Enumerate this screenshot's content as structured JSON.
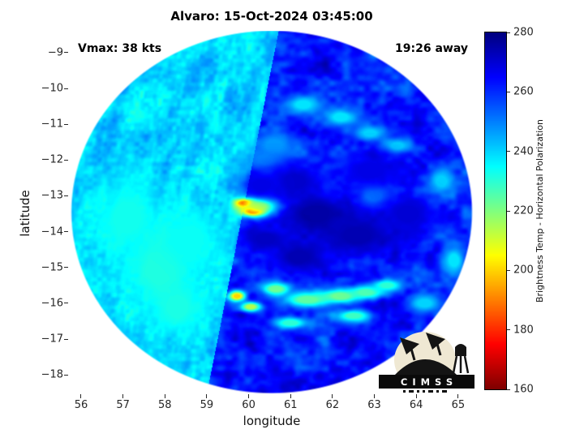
{
  "title": "Alvaro: 15-Oct-2024 03:45:00",
  "annotations": {
    "vmax": "Vmax: 38 kts",
    "time_away": "19:26 away"
  },
  "axes": {
    "xlabel": "longitude",
    "ylabel": "latitude",
    "xticks": [
      56,
      57,
      58,
      59,
      60,
      61,
      62,
      63,
      64,
      65
    ],
    "yticks": [
      -9,
      -10,
      -11,
      -12,
      -13,
      -14,
      -15,
      -16,
      -17,
      -18
    ]
  },
  "colorbar": {
    "label": "Brightness Temp - Horizontal Polarization",
    "min": 160,
    "max": 280,
    "ticks": [
      160,
      180,
      200,
      220,
      240,
      260,
      280
    ]
  },
  "logo": {
    "text": "CIMSS"
  },
  "chart_data": {
    "type": "heatmap",
    "title": "Alvaro: 15-Oct-2024 03:45:00",
    "xlabel": "longitude",
    "ylabel": "latitude",
    "xlim": [
      55.71,
      65.39
    ],
    "ylim": [
      -18.54,
      -8.39
    ],
    "value_label": "Brightness Temp - Horizontal Polarization",
    "value_range": [
      160,
      280
    ],
    "colormap": "jet_reversed",
    "grid": false,
    "swath": {
      "center_lon": 60.55,
      "center_lat": -13.45,
      "radius_lon": 4.8,
      "radius_lat": 5.08,
      "seam_lon_ref": 59.87,
      "seam_ref_lat": -13.4,
      "seam_slope": 0.169,
      "left_base_temp": 240,
      "left_temp_variation": 20,
      "right_base_temp": 262,
      "right_temp_variation": 24
    },
    "features": [
      {
        "lon": 59.93,
        "lat": -13.2,
        "t": 166,
        "sx": 0.16,
        "sy": 0.08
      },
      {
        "lon": 60.12,
        "lat": -13.42,
        "t": 176,
        "sx": 0.2,
        "sy": 0.1
      },
      {
        "lon": 60.25,
        "lat": -13.28,
        "t": 206,
        "sx": 0.3,
        "sy": 0.15
      },
      {
        "lon": 59.72,
        "lat": -15.8,
        "t": 200,
        "sx": 0.14,
        "sy": 0.1
      },
      {
        "lon": 60.05,
        "lat": -16.1,
        "t": 214,
        "sx": 0.18,
        "sy": 0.1
      },
      {
        "lon": 60.65,
        "lat": -15.6,
        "t": 222,
        "sx": 0.25,
        "sy": 0.13
      },
      {
        "lon": 61.4,
        "lat": -15.9,
        "t": 224,
        "sx": 0.4,
        "sy": 0.15
      },
      {
        "lon": 62.2,
        "lat": -15.8,
        "t": 222,
        "sx": 0.35,
        "sy": 0.14
      },
      {
        "lon": 62.8,
        "lat": -15.7,
        "t": 226,
        "sx": 0.3,
        "sy": 0.13
      },
      {
        "lon": 63.3,
        "lat": -15.5,
        "t": 230,
        "sx": 0.25,
        "sy": 0.12
      },
      {
        "lon": 62.5,
        "lat": -16.35,
        "t": 228,
        "sx": 0.3,
        "sy": 0.12
      },
      {
        "lon": 61.0,
        "lat": -16.55,
        "t": 230,
        "sx": 0.3,
        "sy": 0.12
      },
      {
        "lon": 61.3,
        "lat": -10.45,
        "t": 238,
        "sx": 0.3,
        "sy": 0.18
      },
      {
        "lon": 62.2,
        "lat": -10.8,
        "t": 238,
        "sx": 0.3,
        "sy": 0.18
      },
      {
        "lon": 62.9,
        "lat": -11.25,
        "t": 240,
        "sx": 0.25,
        "sy": 0.15
      },
      {
        "lon": 63.55,
        "lat": -11.6,
        "t": 240,
        "sx": 0.25,
        "sy": 0.15
      },
      {
        "lon": 64.6,
        "lat": -12.6,
        "t": 240,
        "sx": 0.22,
        "sy": 0.25
      },
      {
        "lon": 64.9,
        "lat": -14.8,
        "t": 238,
        "sx": 0.2,
        "sy": 0.3
      },
      {
        "lon": 64.2,
        "lat": -16.0,
        "t": 240,
        "sx": 0.28,
        "sy": 0.18
      },
      {
        "lon": 63.0,
        "lat": -13.0,
        "t": 247,
        "sx": 0.3,
        "sy": 0.25
      },
      {
        "lon": 60.6,
        "lat": -11.6,
        "t": 247,
        "sx": 0.35,
        "sy": 0.3
      },
      {
        "lon": 60.4,
        "lat": -12.0,
        "t": 249,
        "sx": 0.3,
        "sy": 0.22
      },
      {
        "lon": 61.6,
        "lat": -13.5,
        "t": 276,
        "sx": 0.55,
        "sy": 0.4
      },
      {
        "lon": 62.6,
        "lat": -14.1,
        "t": 274,
        "sx": 0.6,
        "sy": 0.4
      },
      {
        "lon": 61.2,
        "lat": -14.7,
        "t": 274,
        "sx": 0.45,
        "sy": 0.3
      },
      {
        "lon": 63.8,
        "lat": -13.5,
        "t": 270,
        "sx": 0.45,
        "sy": 0.4
      },
      {
        "lon": 61.1,
        "lat": -12.6,
        "t": 271,
        "sx": 0.45,
        "sy": 0.35
      },
      {
        "lon": 62.9,
        "lat": -12.3,
        "t": 268,
        "sx": 0.5,
        "sy": 0.35
      },
      {
        "lon": 60.4,
        "lat": -14.2,
        "t": 272,
        "sx": 0.4,
        "sy": 0.25
      },
      {
        "lon": 60.3,
        "lat": -12.7,
        "t": 268,
        "sx": 0.35,
        "sy": 0.25
      },
      {
        "lon": 57.9,
        "lat": -15.0,
        "t": 231,
        "sx": 0.6,
        "sy": 0.8
      },
      {
        "lon": 58.3,
        "lat": -16.1,
        "t": 232,
        "sx": 0.45,
        "sy": 0.55
      },
      {
        "lon": 57.1,
        "lat": -13.6,
        "t": 233,
        "sx": 0.55,
        "sy": 0.75
      },
      {
        "lon": 58.6,
        "lat": -14.2,
        "t": 234,
        "sx": 0.5,
        "sy": 0.6
      }
    ]
  }
}
